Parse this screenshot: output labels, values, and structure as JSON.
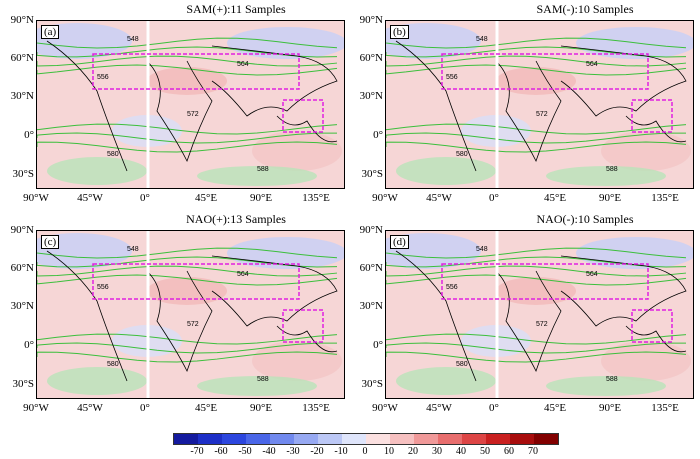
{
  "panels": [
    {
      "id": "a",
      "label": "(a)",
      "title": "SAM(+):11 Samples"
    },
    {
      "id": "b",
      "label": "(b)",
      "title": "SAM(-):10 Samples"
    },
    {
      "id": "c",
      "label": "(c)",
      "title": "NAO(+):13 Samples"
    },
    {
      "id": "d",
      "label": "(d)",
      "title": "NAO(-):10 Samples"
    }
  ],
  "lat_labels": [
    "90°N",
    "60°N",
    "30°N",
    "0°",
    "30°S"
  ],
  "lon_labels": [
    "90°W",
    "45°W",
    "0°",
    "45°E",
    "90°E",
    "135°E"
  ],
  "contour_labels": [
    "548",
    "556",
    "564",
    "572",
    "580",
    "588"
  ],
  "colorbar": {
    "labels": [
      "-70",
      "-60",
      "-50",
      "-40",
      "-30",
      "-20",
      "-10",
      "0",
      "10",
      "20",
      "30",
      "40",
      "50",
      "60",
      "70"
    ],
    "colors": [
      "#141a9e",
      "#1d2fc7",
      "#2c46de",
      "#4a66e8",
      "#7189ee",
      "#97a9f2",
      "#bcc8f6",
      "#dfe5fb",
      "#fbe0e0",
      "#f6c0c0",
      "#f09999",
      "#e86e6e",
      "#dd4545",
      "#c92020",
      "#a80d0d",
      "#820000"
    ]
  }
}
